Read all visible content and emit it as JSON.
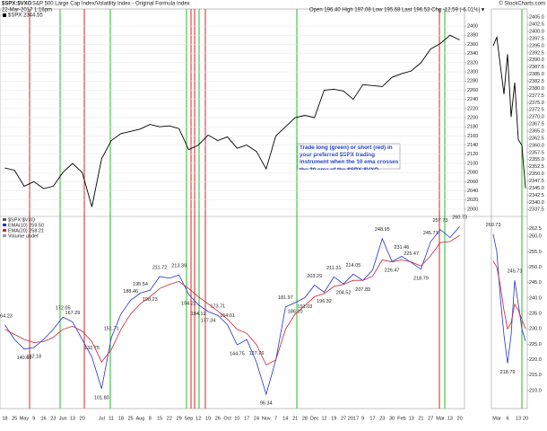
{
  "header": {
    "symbol": "$SPX:$VXO",
    "description": "S&P 500 Large Cap Index/Volatility Index - Original Formula Index",
    "date": "22-Mar-2017 1:16pm",
    "copyright": "© StockCharts.com",
    "ohlc": "Open 196.40  High 197.08  Low 195.68  Last 196.53  Chg -12.59 (-6.01%)▼",
    "legend": "$SPX 2344.55"
  },
  "annotation": "Trade long (green) or short (red) in your preferred $SPX trading instrument when the 10 ema crosses the 20 ema of the $SPX:$VXO.",
  "chart_data": [
    {
      "type": "line",
      "series": [
        {
          "name": "$SPX",
          "color": "#000000",
          "values": [
            2090,
            2085,
            2050,
            2060,
            2045,
            2050,
            2080,
            2100,
            2080,
            2005,
            2110,
            2150,
            2165,
            2170,
            2175,
            2185,
            2180,
            2182,
            2176,
            2130,
            2140,
            2162,
            2150,
            2158,
            2133,
            2140,
            2126,
            2088,
            2160,
            2180,
            2200,
            2205,
            2200,
            2260,
            2262,
            2258,
            2240,
            2272,
            2270,
            2268,
            2288,
            2296,
            2302,
            2320,
            2350,
            2362,
            2380,
            2370
          ]
        }
      ],
      "ylim": [
        1990,
        2410
      ],
      "yticks": [
        2400,
        2380,
        2360,
        2340,
        2320,
        2300,
        2280,
        2260,
        2240,
        2220,
        2200,
        2180,
        2160,
        2140,
        2120,
        2100,
        2080,
        2060,
        2040,
        2020,
        2000
      ],
      "grid": true
    },
    {
      "type": "line",
      "categories": [
        "18",
        "25",
        "May",
        "9",
        "16",
        "23",
        "Jun",
        "13",
        "20",
        null,
        "Jul",
        "11",
        "18",
        "25",
        "Aug",
        "8",
        "15",
        "22",
        "29",
        "Sep",
        "12",
        "19",
        "26",
        "Oct",
        "10",
        "17",
        "24",
        "Nov",
        "7",
        "14",
        "21",
        "28",
        "Dec",
        "12",
        "19",
        "27",
        "2017",
        "9",
        "17",
        "23",
        "30",
        "Feb",
        "13",
        "21",
        "27",
        "Mar",
        "13",
        "20"
      ],
      "series": [
        {
          "name": "EMA(10) 259.50",
          "color": "#2233cc",
          "values": [
            164.23,
            150,
            140.61,
            142.18,
            150,
            160,
            172.05,
            167.29,
            150,
            132.75,
            101.8,
            151.71,
            175,
            188.46,
            195.54,
            198.23,
            211.72,
            210,
            213.39,
            194.21,
            184.12,
            177.34,
            173.71,
            164.61,
            144.75,
            150,
            127.76,
            96.34,
            130,
            181.97,
            186.1,
            191.03,
            203.29,
            196.32,
            211.31,
            204.52,
            214.05,
            207.89,
            218,
            248.95,
            226.47,
            231.46,
            225.47,
            218.79,
            245.71,
            257.73,
            250,
            260.73
          ],
          "value_labels": [
            "164.23",
            null,
            "140.61",
            "142.18",
            null,
            null,
            "172.05",
            "167.29",
            null,
            "132.75",
            "101.80",
            "151.71",
            null,
            "188.46",
            "195.54",
            "198.23",
            "211.72",
            null,
            "213.39",
            "194.21",
            "184.12",
            "177.34",
            "173.71",
            "164.61",
            "144.75",
            null,
            "127.76",
            "96.34",
            null,
            "181.97",
            "186.10",
            "191.03",
            "203.29",
            "196.32",
            "211.31",
            "204.52",
            "214.05",
            "207.89",
            null,
            "248.95",
            "226.47",
            "231.46",
            "225.47",
            "218.79",
            "245.71",
            "257.73",
            null,
            "260.73"
          ]
        },
        {
          "name": "EMA(20) 258.21",
          "color": "#cc2233",
          "values": [
            160,
            155,
            150,
            147,
            148,
            152,
            160,
            163,
            158,
            148,
            128,
            140,
            160,
            175,
            185,
            192,
            200,
            204,
            207,
            200,
            192,
            185,
            178,
            170,
            160,
            156,
            145,
            125,
            130,
            160,
            175,
            183,
            192,
            195,
            202,
            204,
            208,
            208,
            212,
            228,
            226,
            228,
            226,
            222,
            232,
            245,
            246,
            252
          ]
        }
      ],
      "legend_extra": [
        "$SPX:$VXO",
        "Volume undef"
      ],
      "ylim": [
        85,
        268
      ]
    },
    {
      "type": "line",
      "series": [
        {
          "name": "$SPX",
          "color": "#000000",
          "values": [
            2395,
            2398,
            2388,
            2378,
            2392,
            2370,
            2382,
            2362,
            2360,
            2345
          ]
        }
      ],
      "ylim": [
        2336,
        2406
      ],
      "yticks": [
        {
          "value": 2405,
          "label": "2405.0"
        },
        2402.5,
        {
          "value": 2400,
          "label": "2400.0"
        },
        2397.5,
        {
          "value": 2395,
          "label": "2395.0"
        },
        2392.5,
        {
          "value": 2390,
          "label": "2390.0"
        },
        2387.5,
        {
          "value": 2385,
          "label": "2385.0"
        },
        2382.5,
        {
          "value": 2380,
          "label": "2380.0"
        },
        2377.5,
        {
          "value": 2375,
          "label": "2375.0"
        },
        2372.5,
        {
          "value": 2370,
          "label": "2370.0"
        },
        2367.5,
        {
          "value": 2365,
          "label": "2365.0"
        },
        2362.5,
        {
          "value": 2360,
          "label": "2360.0"
        },
        2357.5,
        {
          "value": 2355,
          "label": "2355.0"
        },
        2352.5,
        {
          "value": 2350,
          "label": "2350.0"
        },
        2347.5,
        {
          "value": 2345,
          "label": "2345.0"
        },
        2342.5,
        {
          "value": 2340,
          "label": "2340.0"
        },
        2337.5
      ]
    },
    {
      "type": "line",
      "categories": [
        null,
        "Mar",
        null,
        null,
        "6",
        null,
        null,
        "13",
        null,
        "20"
      ],
      "series": [
        {
          "name": "EMA(10)",
          "color": "#2233cc",
          "values": [
            260.73,
            255,
            240,
            228,
            218.79,
            228,
            245.73,
            238,
            230,
            226
          ],
          "value_labels": [
            "260.73",
            null,
            null,
            null,
            "218.79",
            null,
            "245.73",
            null,
            null,
            null
          ]
        },
        {
          "name": "EMA(20)",
          "color": "#cc2233",
          "values": [
            252,
            250,
            244,
            236,
            230,
            232,
            238,
            236,
            233,
            230
          ]
        }
      ],
      "ylim": [
        205,
        265
      ],
      "yticks": [
        262.5,
        {
          "value": 260,
          "label": "260.0"
        },
        {
          "value": 255,
          "label": "255.0"
        },
        {
          "value": 250,
          "label": "250.0"
        },
        {
          "value": 245,
          "label": "245.0"
        },
        {
          "value": 240,
          "label": "240.0"
        },
        {
          "value": 235,
          "label": "235.0"
        },
        {
          "value": 230,
          "label": "230.0"
        },
        {
          "value": 225,
          "label": "225.0"
        },
        {
          "value": 220,
          "label": "220.0"
        },
        {
          "value": 215,
          "label": "215.0"
        },
        {
          "value": 210,
          "label": "210.0"
        }
      ]
    }
  ]
}
